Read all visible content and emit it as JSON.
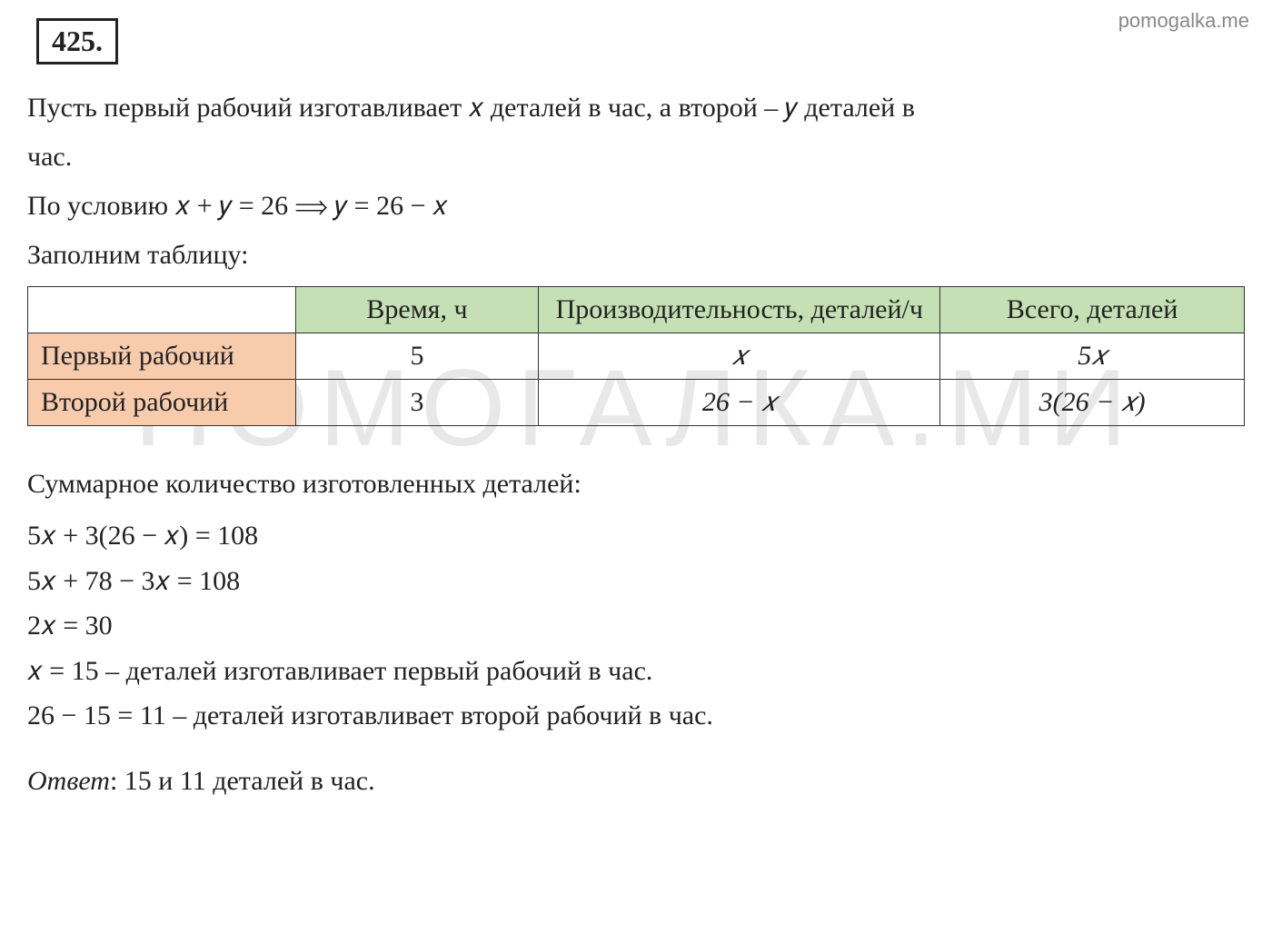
{
  "watermark_top": "pomogalka.me",
  "watermark_center": "ПОМОГАЛКА.МИ",
  "problem_number": "425.",
  "intro_line_1": "Пусть первый рабочий изготавливает 𝑥 деталей в час, а второй – 𝑦 деталей в",
  "intro_line_2": "час.",
  "condition_line": "По условию 𝑥 + 𝑦 = 26  ⟹ 𝑦 = 26 − 𝑥",
  "table_intro": "Заполним таблицу:",
  "table": {
    "headers": {
      "col1": "",
      "col2": "Время, ч",
      "col3": "Производительность, деталей/ч",
      "col4": "Всего, деталей"
    },
    "rows": [
      {
        "label": "Первый рабочий",
        "time": "5",
        "productivity": "𝑥",
        "total": "5𝑥"
      },
      {
        "label": "Второй рабочий",
        "time": "3",
        "productivity": "26 − 𝑥",
        "total": "3(26 − 𝑥)"
      }
    ],
    "colors": {
      "header_bg": "#c5e0b4",
      "row_label_bg": "#f8cbad",
      "border": "#333333"
    }
  },
  "summary_line": "Суммарное количество изготовленных деталей:",
  "equations": {
    "eq1": "5𝑥 + 3(26 − 𝑥) = 108",
    "eq2": "5𝑥 + 78 − 3𝑥 = 108",
    "eq3": "2𝑥 = 30",
    "eq4": "𝑥 = 15 – деталей изготавливает первый рабочий в час.",
    "eq5": "26 − 15 = 11 – деталей изготавливает второй рабочий в час."
  },
  "answer": {
    "label": "Ответ",
    "text": ": 15 и 11 деталей в час."
  }
}
